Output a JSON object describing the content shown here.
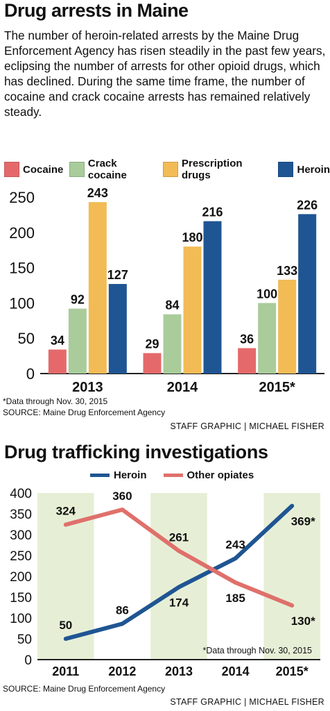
{
  "colors": {
    "cocaine": "#e5696a",
    "crack": "#a9cc9a",
    "prescription": "#f2bb55",
    "heroin": "#1f5593",
    "other_opiates": "#df706b",
    "band": "#e6efd6"
  },
  "bar_section": {
    "title": "Drug arrests in Maine",
    "intro": "The number of heroin-related arrests by the Maine Drug Enforcement Agency has risen steadily in the past few years, eclipsing the number of arrests for other opioid drugs, which has declined. During the same time frame, the number of cocaine and crack cocaine arrests has remained relatively steady.",
    "note": "*Data through Nov. 30, 2015",
    "source": "SOURCE: Maine Drug Enforcement Agency",
    "credit": "STAFF GRAPHIC | MICHAEL FISHER"
  },
  "line_section": {
    "title": "Drug trafficking investigations",
    "note": "*Data through Nov. 30, 2015",
    "source": "SOURCE: Maine Drug Enforcement Agency",
    "credit": "STAFF GRAPHIC | MICHAEL FISHER"
  },
  "chart_data": [
    {
      "type": "bar",
      "title": "Drug arrests in Maine",
      "categories": [
        "2013",
        "2014",
        "2015*"
      ],
      "series": [
        {
          "name": "Cocaine",
          "values": [
            34,
            29,
            36
          ]
        },
        {
          "name": "Crack cocaine",
          "values": [
            92,
            84,
            100
          ]
        },
        {
          "name": "Prescription drugs",
          "values": [
            243,
            180,
            133
          ]
        },
        {
          "name": "Heroin",
          "values": [
            127,
            216,
            226
          ]
        }
      ],
      "ylim": [
        0,
        250
      ],
      "yticks": [
        0,
        50,
        100,
        150,
        200,
        250
      ],
      "legend": "top",
      "grid": false
    },
    {
      "type": "line",
      "title": "Drug trafficking investigations",
      "categories": [
        "2011",
        "2012",
        "2013",
        "2014",
        "2015*"
      ],
      "series": [
        {
          "name": "Heroin",
          "values": [
            50,
            86,
            174,
            243,
            369
          ],
          "labels": [
            "50",
            "86",
            "174",
            "243",
            "369*"
          ]
        },
        {
          "name": "Other opiates",
          "values": [
            324,
            360,
            261,
            185,
            130
          ],
          "labels": [
            "324",
            "360",
            "261",
            "185",
            "130*"
          ]
        }
      ],
      "ylim": [
        0,
        400
      ],
      "yticks": [
        0,
        50,
        100,
        150,
        200,
        250,
        300,
        350,
        400
      ],
      "legend": "top",
      "grid": false
    }
  ]
}
